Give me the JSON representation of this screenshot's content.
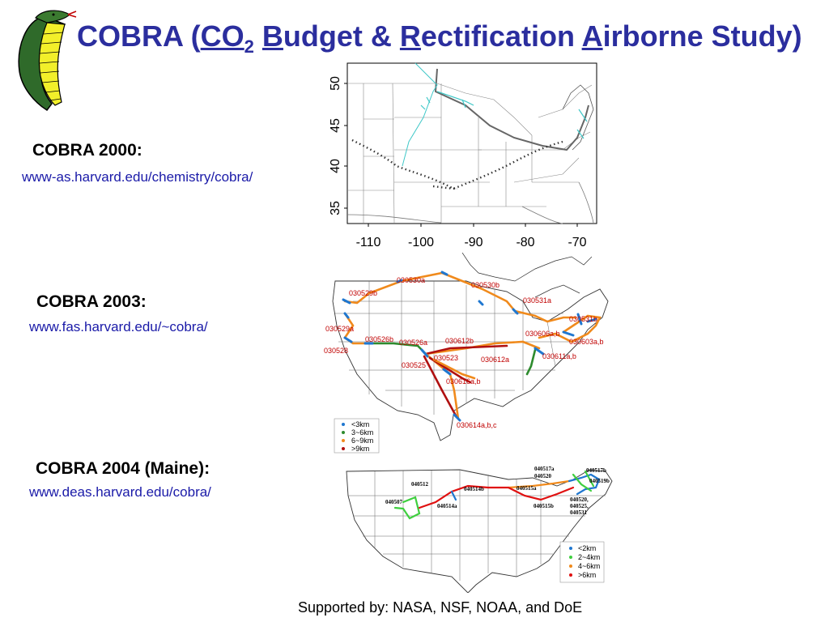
{
  "title": {
    "prefix": "COBRA (",
    "co": "CO",
    "sub2": "2",
    "b": "B",
    "udget": "udget & ",
    "r": "R",
    "ectification": "ectification ",
    "a": "A",
    "irborne": "irborne Study)"
  },
  "sections": [
    {
      "title": "COBRA 2000:",
      "url": "www-as.harvard.edu/chemistry/cobra/"
    },
    {
      "title": "COBRA 2003:",
      "url": "www.fas.harvard.edu/~cobra/"
    },
    {
      "title": "COBRA 2004 (Maine):",
      "url": "www.deas.harvard.edu/cobra/"
    }
  ],
  "map2000": {
    "lat_ticks": [
      "50",
      "45",
      "40",
      "35"
    ],
    "lon_ticks": [
      "-110",
      "-100",
      "-90",
      "-80",
      "-70"
    ]
  },
  "map2003": {
    "flight_labels": [
      "030530a",
      "030530b",
      "030529b",
      "030531a",
      "030529a",
      "030526b",
      "030526a",
      "030612b",
      "030531b",
      "030606a,b",
      "030603a,b",
      "030528",
      "030523",
      "030612a",
      "030611a,b",
      "030525",
      "030616a,b",
      "030614a,b,c"
    ],
    "legend": [
      {
        "label": "<3km",
        "color": "#1f77d0"
      },
      {
        "label": "3~6km",
        "color": "#2e8b2e"
      },
      {
        "label": "6~9km",
        "color": "#f08a1c"
      },
      {
        "label": ">9km",
        "color": "#b01010"
      }
    ]
  },
  "map2004": {
    "flight_labels": [
      "040517a",
      "040517b",
      "040520",
      "040519b",
      "040512",
      "040514b",
      "040515a",
      "040507",
      "040514a",
      "040515b",
      "040520,",
      "040525,",
      "040531"
    ],
    "legend": [
      {
        "label": "<2km",
        "color": "#1f77d0"
      },
      {
        "label": "2~4km",
        "color": "#3fcf3f"
      },
      {
        "label": "4~6km",
        "color": "#f08a1c"
      },
      {
        "label": ">6km",
        "color": "#e01010"
      }
    ]
  },
  "footer": "Supported by:  NASA, NSF, NOAA, and DoE"
}
